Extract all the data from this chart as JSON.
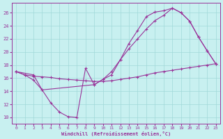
{
  "background_color": "#c8f0f0",
  "grid_color": "#a0d8d8",
  "line_color": "#993399",
  "marker": "+",
  "xlim": [
    -0.5,
    23.5
  ],
  "ylim": [
    9,
    27.5
  ],
  "xlabel": "Windchill (Refroidissement éolien,°C)",
  "yticks": [
    10,
    12,
    14,
    16,
    18,
    20,
    22,
    24,
    26
  ],
  "xticks": [
    0,
    1,
    2,
    3,
    4,
    5,
    6,
    7,
    8,
    9,
    10,
    11,
    12,
    13,
    14,
    15,
    16,
    17,
    18,
    19,
    20,
    21,
    22,
    23
  ],
  "curve1": [
    [
      0,
      17.0
    ],
    [
      1,
      16.5
    ],
    [
      2,
      15.7
    ],
    [
      3,
      14.2
    ],
    [
      4,
      12.2
    ],
    [
      5,
      10.8
    ],
    [
      6,
      10.1
    ],
    [
      7,
      10.0
    ],
    [
      8,
      17.5
    ],
    [
      9,
      15.0
    ],
    [
      10,
      15.8
    ],
    [
      11,
      16.5
    ],
    [
      12,
      18.8
    ],
    [
      13,
      21.3
    ],
    [
      14,
      23.3
    ],
    [
      15,
      25.4
    ],
    [
      16,
      26.1
    ],
    [
      17,
      26.3
    ],
    [
      18,
      26.7
    ],
    [
      19,
      26.0
    ],
    [
      20,
      24.7
    ],
    [
      21,
      22.3
    ],
    [
      22,
      20.2
    ],
    [
      23,
      18.2
    ]
  ],
  "curve2": [
    [
      0,
      17.0
    ],
    [
      1,
      16.5
    ],
    [
      2,
      16.3
    ],
    [
      3,
      16.2
    ],
    [
      4,
      16.1
    ],
    [
      5,
      15.9
    ],
    [
      6,
      15.8
    ],
    [
      7,
      15.7
    ],
    [
      8,
      15.6
    ],
    [
      9,
      15.5
    ],
    [
      10,
      15.5
    ],
    [
      11,
      15.6
    ],
    [
      12,
      15.8
    ],
    [
      13,
      16.0
    ],
    [
      14,
      16.2
    ],
    [
      15,
      16.5
    ],
    [
      16,
      16.8
    ],
    [
      17,
      17.0
    ],
    [
      18,
      17.2
    ],
    [
      19,
      17.4
    ],
    [
      20,
      17.6
    ],
    [
      21,
      17.8
    ],
    [
      22,
      18.0
    ],
    [
      23,
      18.2
    ]
  ],
  "curve3": [
    [
      0,
      17.0
    ],
    [
      2,
      16.5
    ],
    [
      3,
      14.2
    ],
    [
      9,
      15.0
    ],
    [
      10,
      15.8
    ],
    [
      11,
      17.0
    ],
    [
      12,
      18.8
    ],
    [
      13,
      20.5
    ],
    [
      14,
      22.0
    ],
    [
      15,
      23.5
    ],
    [
      16,
      24.8
    ],
    [
      17,
      25.6
    ],
    [
      18,
      26.7
    ],
    [
      19,
      26.0
    ],
    [
      20,
      24.7
    ],
    [
      21,
      22.3
    ],
    [
      22,
      20.2
    ],
    [
      23,
      18.2
    ]
  ]
}
